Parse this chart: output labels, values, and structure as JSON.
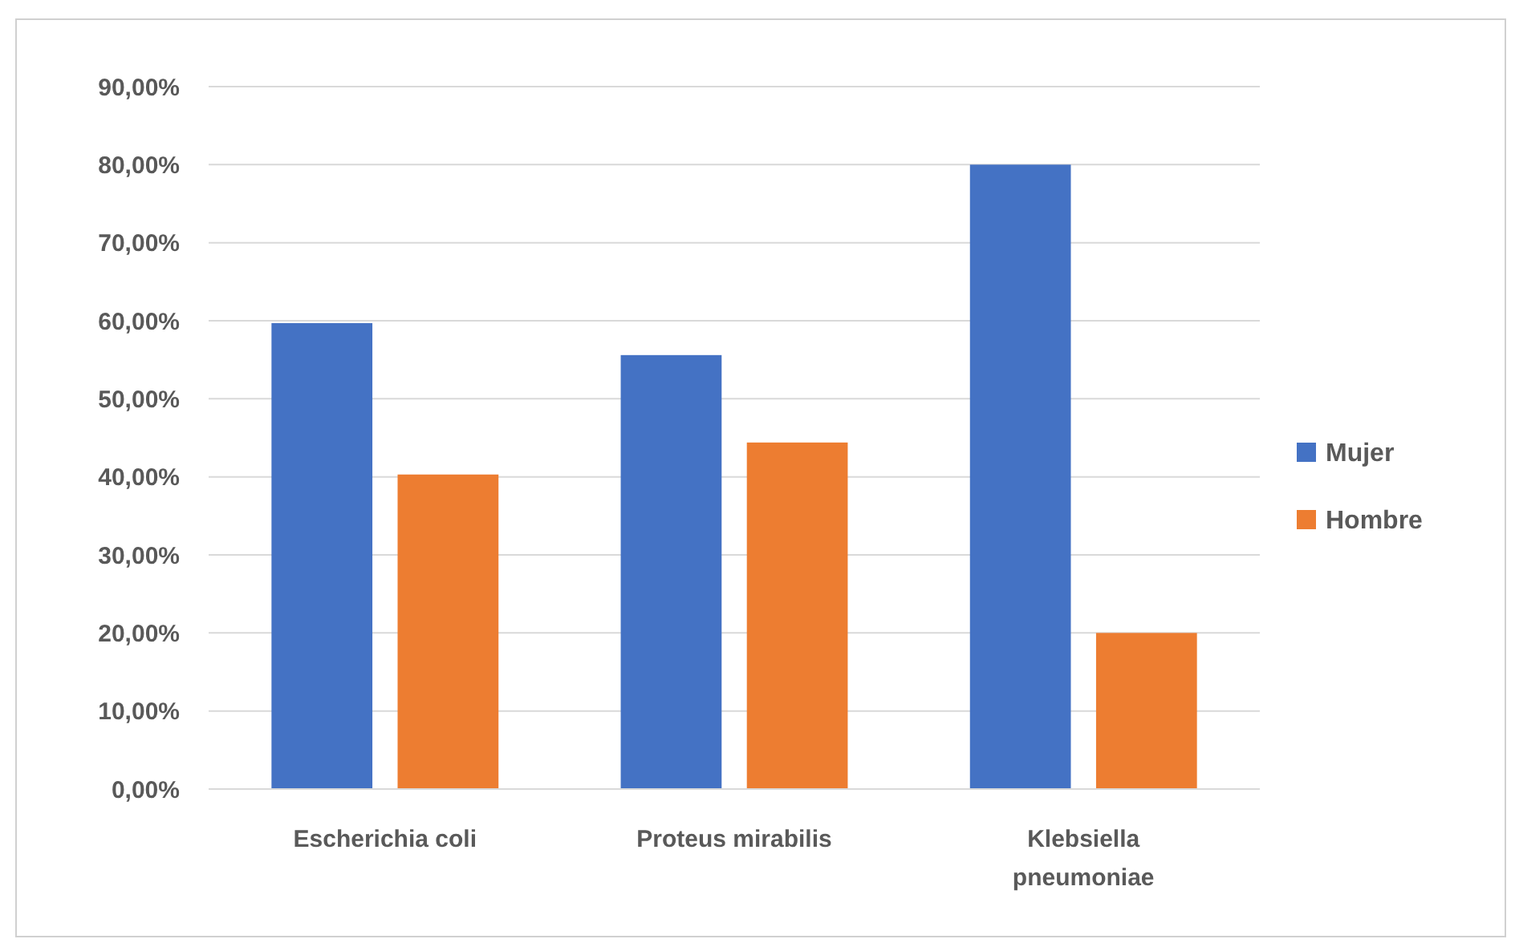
{
  "chart_data": {
    "type": "bar",
    "categories": [
      "Escherichia coli",
      "Proteus mirabilis",
      "Klebsiella pneumoniae"
    ],
    "series": [
      {
        "name": "Mujer",
        "color": "#4472c4",
        "values": [
          59.7,
          55.6,
          80
        ]
      },
      {
        "name": "Hombre",
        "color": "#ed7d31",
        "values": [
          40.3,
          44.4,
          20
        ]
      }
    ],
    "ylim": [
      0,
      90
    ],
    "yticks": [
      {
        "value": 0,
        "label": "0,00%"
      },
      {
        "value": 10,
        "label": "10,00%"
      },
      {
        "value": 20,
        "label": "20,00%"
      },
      {
        "value": 30,
        "label": "30,00%"
      },
      {
        "value": 40,
        "label": "40,00%"
      },
      {
        "value": 50,
        "label": "50,00%"
      },
      {
        "value": 60,
        "label": "60,00%"
      },
      {
        "value": 70,
        "label": "70,00%"
      },
      {
        "value": 80,
        "label": "80,00%"
      },
      {
        "value": 90,
        "label": "90,00%"
      }
    ],
    "grid": "y",
    "legend": "right"
  }
}
